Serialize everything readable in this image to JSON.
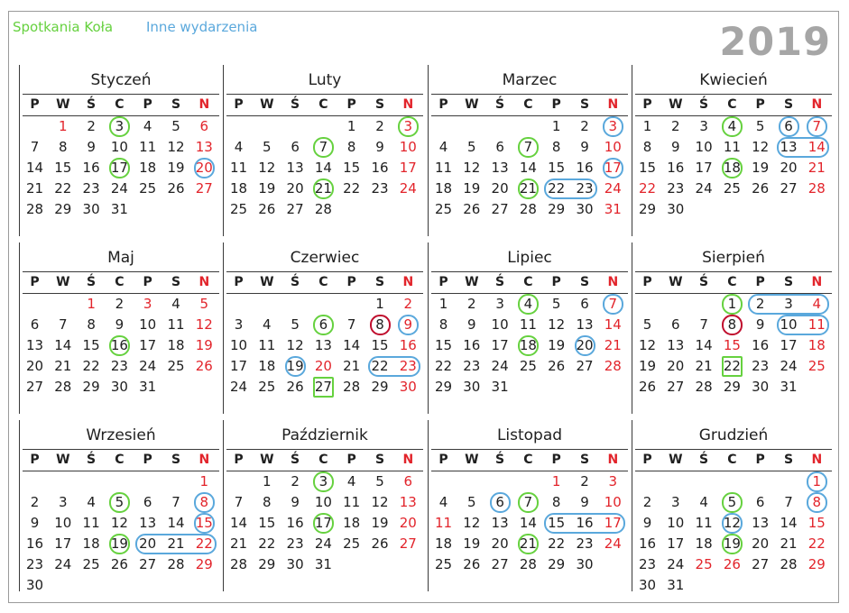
{
  "legend": {
    "green": "Spotkania Koła",
    "blue": "Inne wydarzenia"
  },
  "year": "2019",
  "colors": {
    "green": "#66d13f",
    "blue": "#5aa8dc",
    "dark_red": "#c00d2d",
    "sunday_holiday": "#e2242b"
  },
  "weekdays": [
    "P",
    "W",
    "Ś",
    "C",
    "P",
    "S",
    "N"
  ],
  "months": [
    {
      "name": "Styczeń",
      "offset": 1,
      "days": 31,
      "red": [
        1,
        6
      ],
      "rings": [
        {
          "from": 3,
          "to": 3,
          "color": "green"
        },
        {
          "from": 17,
          "to": 17,
          "color": "green"
        },
        {
          "from": 20,
          "to": 20,
          "color": "blue"
        }
      ]
    },
    {
      "name": "Luty",
      "offset": 4,
      "days": 28,
      "red": [],
      "rings": [
        {
          "from": 3,
          "to": 3,
          "color": "green"
        },
        {
          "from": 7,
          "to": 7,
          "color": "green"
        },
        {
          "from": 21,
          "to": 21,
          "color": "green"
        }
      ]
    },
    {
      "name": "Marzec",
      "offset": 4,
      "days": 31,
      "red": [],
      "rings": [
        {
          "from": 3,
          "to": 3,
          "color": "blue"
        },
        {
          "from": 7,
          "to": 7,
          "color": "green"
        },
        {
          "from": 17,
          "to": 17,
          "color": "blue"
        },
        {
          "from": 21,
          "to": 21,
          "color": "green"
        },
        {
          "from": 22,
          "to": 23,
          "color": "blue"
        }
      ]
    },
    {
      "name": "Kwiecień",
      "offset": 0,
      "days": 30,
      "red": [
        22
      ],
      "rings": [
        {
          "from": 4,
          "to": 4,
          "color": "green"
        },
        {
          "from": 6,
          "to": 6,
          "color": "blue"
        },
        {
          "from": 7,
          "to": 7,
          "color": "blue"
        },
        {
          "from": 13,
          "to": 14,
          "color": "blue"
        },
        {
          "from": 18,
          "to": 18,
          "color": "green"
        }
      ]
    },
    {
      "name": "Maj",
      "offset": 2,
      "days": 31,
      "red": [
        1,
        3
      ],
      "rings": [
        {
          "from": 16,
          "to": 16,
          "color": "green"
        }
      ]
    },
    {
      "name": "Czerwiec",
      "offset": 5,
      "days": 30,
      "red": [
        20
      ],
      "rings": [
        {
          "from": 6,
          "to": 6,
          "color": "green"
        },
        {
          "from": 8,
          "to": 8,
          "color": "dred"
        },
        {
          "from": 9,
          "to": 9,
          "color": "blue"
        },
        {
          "from": 19,
          "to": 19,
          "color": "blue"
        },
        {
          "from": 22,
          "to": 23,
          "color": "blue"
        },
        {
          "from": 27,
          "to": 27,
          "color": "green",
          "square": true
        }
      ]
    },
    {
      "name": "Lipiec",
      "offset": 0,
      "days": 31,
      "red": [],
      "rings": [
        {
          "from": 4,
          "to": 4,
          "color": "green"
        },
        {
          "from": 7,
          "to": 7,
          "color": "blue"
        },
        {
          "from": 18,
          "to": 18,
          "color": "green"
        },
        {
          "from": 20,
          "to": 20,
          "color": "blue"
        }
      ]
    },
    {
      "name": "Sierpień",
      "offset": 3,
      "days": 31,
      "red": [
        15
      ],
      "rings": [
        {
          "from": 1,
          "to": 1,
          "color": "green"
        },
        {
          "from": 2,
          "to": 4,
          "color": "blue"
        },
        {
          "from": 8,
          "to": 8,
          "color": "dred"
        },
        {
          "from": 10,
          "to": 11,
          "color": "blue"
        },
        {
          "from": 22,
          "to": 22,
          "color": "green",
          "square": true
        }
      ]
    },
    {
      "name": "Wrzesień",
      "offset": 6,
      "days": 30,
      "red": [],
      "rings": [
        {
          "from": 5,
          "to": 5,
          "color": "green"
        },
        {
          "from": 8,
          "to": 8,
          "color": "blue"
        },
        {
          "from": 15,
          "to": 15,
          "color": "blue"
        },
        {
          "from": 19,
          "to": 19,
          "color": "green"
        },
        {
          "from": 20,
          "to": 22,
          "color": "blue"
        }
      ]
    },
    {
      "name": "Październik",
      "offset": 1,
      "days": 31,
      "red": [],
      "rings": [
        {
          "from": 3,
          "to": 3,
          "color": "green"
        },
        {
          "from": 17,
          "to": 17,
          "color": "green"
        }
      ]
    },
    {
      "name": "Listopad",
      "offset": 4,
      "days": 30,
      "red": [
        1,
        11
      ],
      "rings": [
        {
          "from": 6,
          "to": 6,
          "color": "blue"
        },
        {
          "from": 7,
          "to": 7,
          "color": "green"
        },
        {
          "from": 15,
          "to": 17,
          "color": "blue"
        },
        {
          "from": 21,
          "to": 21,
          "color": "green"
        }
      ]
    },
    {
      "name": "Grudzień",
      "offset": 6,
      "days": 31,
      "red": [
        25,
        26
      ],
      "rings": [
        {
          "from": 1,
          "to": 1,
          "color": "blue"
        },
        {
          "from": 5,
          "to": 5,
          "color": "green"
        },
        {
          "from": 8,
          "to": 8,
          "color": "blue"
        },
        {
          "from": 12,
          "to": 12,
          "color": "blue"
        },
        {
          "from": 19,
          "to": 19,
          "color": "green"
        }
      ]
    }
  ]
}
